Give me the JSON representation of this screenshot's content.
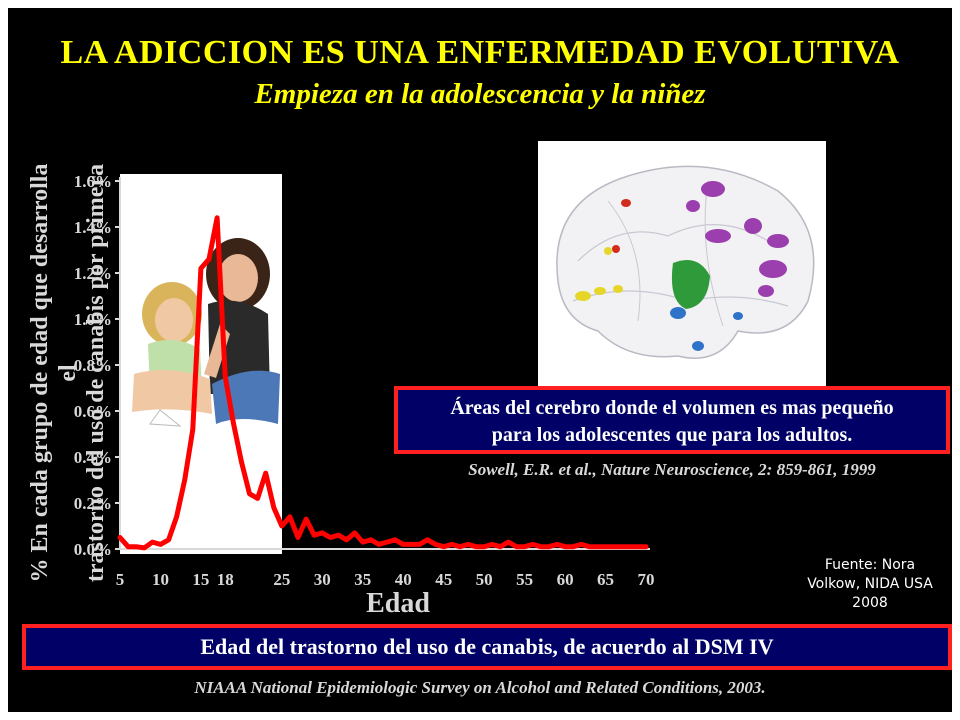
{
  "slide": {
    "title": "LA ADICCION ES UNA ENFERMEDAD EVOLUTIVA",
    "subtitle": "Empieza en la adolescencia y la niñez",
    "brain_caption_line1": "Áreas del cerebro donde el volumen es mas pequeño",
    "brain_caption_line2": "para los adolescentes que para los adultos.",
    "citation": "Sowell, E.R. et al., Nature Neuroscience, 2: 859-861, 1999",
    "source_line1": "Fuente: Nora",
    "source_line2": "Volkow, NIDA USA",
    "source_line3": "2008",
    "footer_caption": "Edad del trastorno del uso de canabis, de acuerdo al DSM IV",
    "footer_source": "NIAAA National Epidemiologic Survey on Alcohol and Related Conditions, 2003."
  },
  "colors": {
    "background": "#000000",
    "title": "#ffff00",
    "line": "#ff0000",
    "box_fill": "#000066",
    "box_border": "#ff2020",
    "text_gray": "#d9d9d9"
  },
  "images": {
    "photo": "two-girls-sitting-photo",
    "brain": "brain-3d-scan-render"
  },
  "chart_data": {
    "type": "line",
    "ylabel_line1": "% En cada grupo de edad que desarrolla el",
    "ylabel_line2": "trastorno del uso de canabis por primera vez",
    "xlabel": "Edad",
    "xlim": [
      5,
      70
    ],
    "ylim": [
      0,
      1.6
    ],
    "x_ticks": [
      5,
      10,
      15,
      18,
      25,
      30,
      35,
      40,
      45,
      50,
      55,
      60,
      65,
      70
    ],
    "y_ticks": [
      "0.0%",
      "0.2%",
      "0.4%",
      "0.6%",
      "0.8%",
      "1.0%",
      "1.2%",
      "1.4%",
      "1.6%"
    ],
    "grid": false,
    "series": [
      {
        "color": "#ff0000",
        "points": [
          [
            5,
            0.05
          ],
          [
            6,
            0.01
          ],
          [
            7,
            0.01
          ],
          [
            8,
            0.005
          ],
          [
            9,
            0.03
          ],
          [
            10,
            0.02
          ],
          [
            11,
            0.04
          ],
          [
            12,
            0.14
          ],
          [
            13,
            0.3
          ],
          [
            14,
            0.52
          ],
          [
            15,
            1.22
          ],
          [
            16,
            1.26
          ],
          [
            17,
            1.44
          ],
          [
            18,
            0.75
          ],
          [
            19,
            0.55
          ],
          [
            20,
            0.38
          ],
          [
            21,
            0.24
          ],
          [
            22,
            0.22
          ],
          [
            23,
            0.33
          ],
          [
            24,
            0.18
          ],
          [
            25,
            0.1
          ],
          [
            26,
            0.14
          ],
          [
            27,
            0.05
          ],
          [
            28,
            0.13
          ],
          [
            29,
            0.06
          ],
          [
            30,
            0.07
          ],
          [
            31,
            0.05
          ],
          [
            32,
            0.06
          ],
          [
            33,
            0.04
          ],
          [
            34,
            0.07
          ],
          [
            35,
            0.03
          ],
          [
            36,
            0.04
          ],
          [
            37,
            0.02
          ],
          [
            38,
            0.03
          ],
          [
            39,
            0.04
          ],
          [
            40,
            0.02
          ],
          [
            41,
            0.02
          ],
          [
            42,
            0.02
          ],
          [
            43,
            0.04
          ],
          [
            44,
            0.02
          ],
          [
            45,
            0.01
          ],
          [
            46,
            0.02
          ],
          [
            47,
            0.01
          ],
          [
            48,
            0.02
          ],
          [
            49,
            0.01
          ],
          [
            50,
            0.01
          ],
          [
            51,
            0.02
          ],
          [
            52,
            0.01
          ],
          [
            53,
            0.03
          ],
          [
            54,
            0.01
          ],
          [
            55,
            0.01
          ],
          [
            56,
            0.02
          ],
          [
            57,
            0.01
          ],
          [
            58,
            0.01
          ],
          [
            59,
            0.02
          ],
          [
            60,
            0.01
          ],
          [
            61,
            0.01
          ],
          [
            62,
            0.02
          ],
          [
            63,
            0.01
          ],
          [
            64,
            0.01
          ],
          [
            65,
            0.01
          ],
          [
            66,
            0.01
          ],
          [
            67,
            0.01
          ],
          [
            68,
            0.01
          ],
          [
            69,
            0.01
          ],
          [
            70,
            0.01
          ]
        ]
      }
    ]
  }
}
